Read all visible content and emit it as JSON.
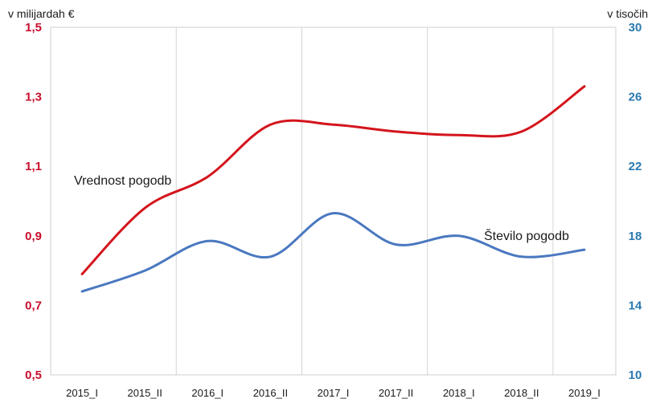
{
  "chart_data": {
    "type": "line",
    "categories": [
      "2015_I",
      "2015_II",
      "2016_I",
      "2016_II",
      "2017_I",
      "2017_II",
      "2018_I",
      "2018_II",
      "2019_I"
    ],
    "y_left": {
      "label": "v milijardah €",
      "range": [
        0.5,
        1.5
      ],
      "ticks": [
        "0,5",
        "0,7",
        "0,9",
        "1,1",
        "1,3",
        "1,5"
      ],
      "color": "#c8102e"
    },
    "y_right": {
      "label": "v tisočih",
      "range": [
        10,
        30
      ],
      "ticks": [
        "10",
        "14",
        "18",
        "22",
        "26",
        "30"
      ],
      "color": "#2a7ab0"
    },
    "series": [
      {
        "name": "Vrednost pogodb",
        "axis": "left",
        "color": "#d4141c",
        "values": [
          0.79,
          0.98,
          1.07,
          1.22,
          1.22,
          1.2,
          1.19,
          1.2,
          1.33
        ]
      },
      {
        "name": "Število pogodb",
        "axis": "right",
        "color": "#4a78c0",
        "values": [
          14.8,
          16.0,
          17.7,
          16.8,
          19.3,
          17.5,
          18.0,
          16.8,
          17.2
        ]
      }
    ],
    "grid": {
      "vertical": true,
      "horizontal": false
    }
  }
}
